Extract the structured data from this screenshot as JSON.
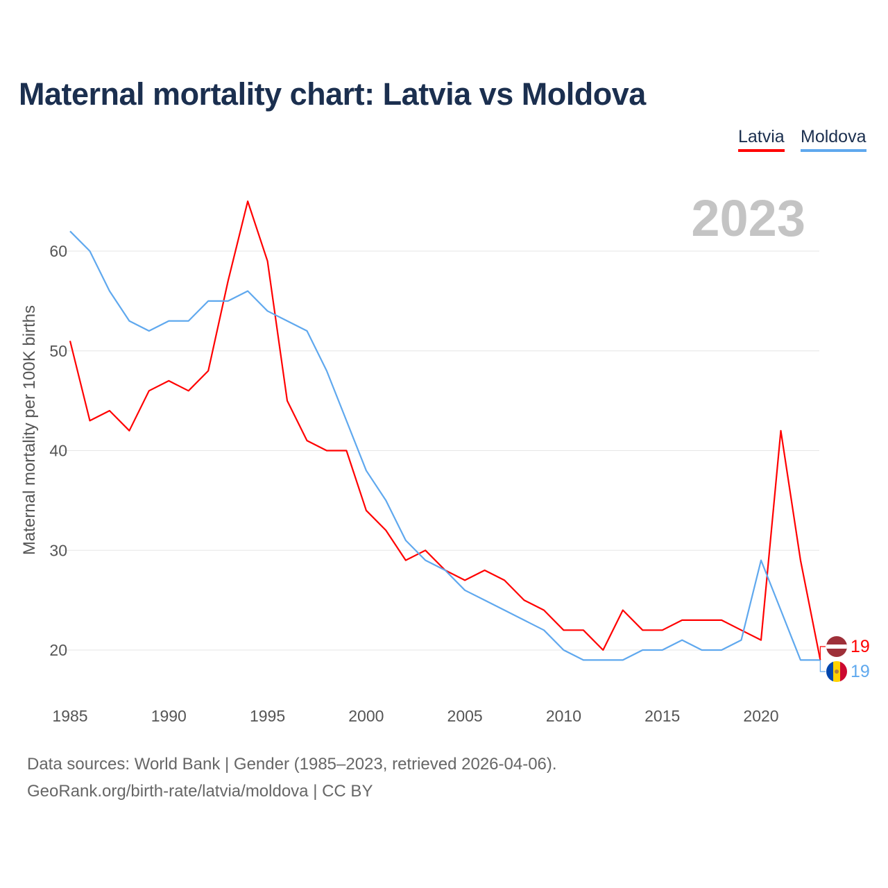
{
  "chart_data": {
    "type": "line",
    "title": "Maternal mortality chart: Latvia vs Moldova",
    "ylabel": "Maternal mortality per 100K births",
    "xlabel": "",
    "year_label": "2023",
    "xlim": [
      1985,
      2023
    ],
    "ylim": [
      17,
      66
    ],
    "xticks": [
      1985,
      1990,
      1995,
      2000,
      2005,
      2010,
      2015,
      2020
    ],
    "yticks": [
      20,
      30,
      40,
      50,
      60
    ],
    "grid": true,
    "legend_placement": "top-right",
    "x": [
      1985,
      1986,
      1987,
      1988,
      1989,
      1990,
      1991,
      1992,
      1993,
      1994,
      1995,
      1996,
      1997,
      1998,
      1999,
      2000,
      2001,
      2002,
      2003,
      2004,
      2005,
      2006,
      2007,
      2008,
      2009,
      2010,
      2011,
      2012,
      2013,
      2014,
      2015,
      2016,
      2017,
      2018,
      2019,
      2020,
      2021,
      2022,
      2023
    ],
    "series": [
      {
        "name": "Latvia",
        "color": "#ff0000",
        "end_label": "19",
        "values": [
          51,
          43,
          44,
          42,
          46,
          47,
          46,
          48,
          57,
          65,
          59,
          45,
          41,
          40,
          40,
          34,
          32,
          29,
          30,
          28,
          27,
          28,
          27,
          25,
          24,
          22,
          22,
          20,
          24,
          22,
          22,
          23,
          23,
          23,
          22,
          21,
          42,
          29,
          19
        ]
      },
      {
        "name": "Moldova",
        "color": "#5fa8ee",
        "end_label": "19",
        "values": [
          62,
          60,
          56,
          53,
          52,
          53,
          53,
          55,
          55,
          56,
          54,
          53,
          52,
          48,
          43,
          38,
          35,
          31,
          29,
          28,
          26,
          25,
          24,
          23,
          22,
          20,
          19,
          19,
          19,
          20,
          20,
          21,
          20,
          20,
          21,
          29,
          24,
          19,
          19
        ]
      }
    ]
  },
  "footer": {
    "sources": "Data sources: World Bank | Gender (1985–2023, retrieved 2026-04-06).",
    "credit": "GeoRank.org/birth-rate/latvia/moldova | CC BY"
  }
}
